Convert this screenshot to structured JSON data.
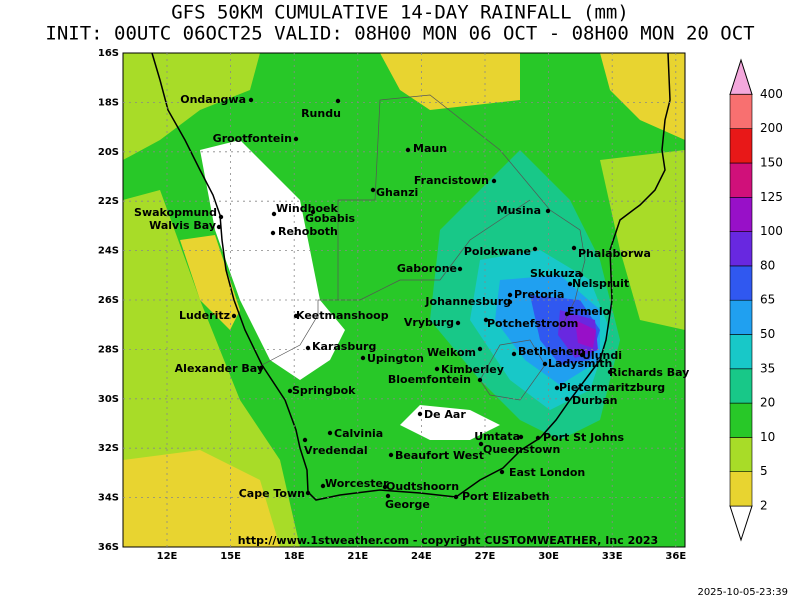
{
  "header": {
    "title": "GFS 50KM CUMULATIVE 14-DAY RAINFALL (mm)",
    "subtitle": "INIT: 00UTC 06OCT25  VALID: 08H00 MON 06 OCT - 08H00 MON 20 OCT"
  },
  "map": {
    "lat_labels": [
      "16S",
      "18S",
      "20S",
      "22S",
      "24S",
      "26S",
      "28S",
      "30S",
      "32S",
      "34S",
      "36S"
    ],
    "lon_labels": [
      "12E",
      "15E",
      "18E",
      "21E",
      "24E",
      "27E",
      "30E",
      "33E",
      "36E"
    ],
    "cities": [
      "Ondangwa",
      "Rundu",
      "Grootfontein",
      "Maun",
      "Francistown",
      "Ghanzi",
      "Swakopmund",
      "Walvis Bay",
      "Windhoek",
      "Gobabis",
      "Rehoboth",
      "Musina",
      "Polokwane",
      "Phalaborwa",
      "Gaborone",
      "Skukuza",
      "Nelspruit",
      "Pretoria",
      "Johannesburg",
      "Ermelo",
      "Luderitz",
      "Keetmanshoop",
      "Vryburg",
      "Potchefstroom",
      "Bethlehem",
      "Ulundi",
      "Karasburg",
      "Upington",
      "Welkom",
      "Ladysmith",
      "Kimberley",
      "Richards Bay",
      "Alexander Bay",
      "Bloemfontein",
      "Pietermaritzburg",
      "Springbok",
      "Durban",
      "De Aar",
      "Calvinia",
      "Umtata",
      "Port St Johns",
      "Queenstown",
      "Vredendal",
      "Beaufort West",
      "East London",
      "Worcester",
      "Oudtshoorn",
      "Cape Town",
      "George",
      "Port Elizabeth"
    ],
    "watermark": "http://www.1stweather.com - copyright CUSTOMWEATHER, Inc 2023"
  },
  "legend": {
    "levels": [
      {
        "value": 2,
        "color": "#e8d430"
      },
      {
        "value": 5,
        "color": "#a8dc28"
      },
      {
        "value": 10,
        "color": "#28c828"
      },
      {
        "value": 20,
        "color": "#18c888"
      },
      {
        "value": 35,
        "color": "#18c8c8"
      },
      {
        "value": 50,
        "color": "#20a0f0"
      },
      {
        "value": 65,
        "color": "#3058f0"
      },
      {
        "value": 80,
        "color": "#6828e0"
      },
      {
        "value": 100,
        "color": "#9810c8"
      },
      {
        "value": 125,
        "color": "#d0107a"
      },
      {
        "value": 150,
        "color": "#e81818"
      },
      {
        "value": 200,
        "color": "#f87070"
      },
      {
        "value": 400,
        "color": "#f4a8dc"
      }
    ]
  },
  "footer": {
    "timestamp": "2025-10-05-23:39"
  }
}
